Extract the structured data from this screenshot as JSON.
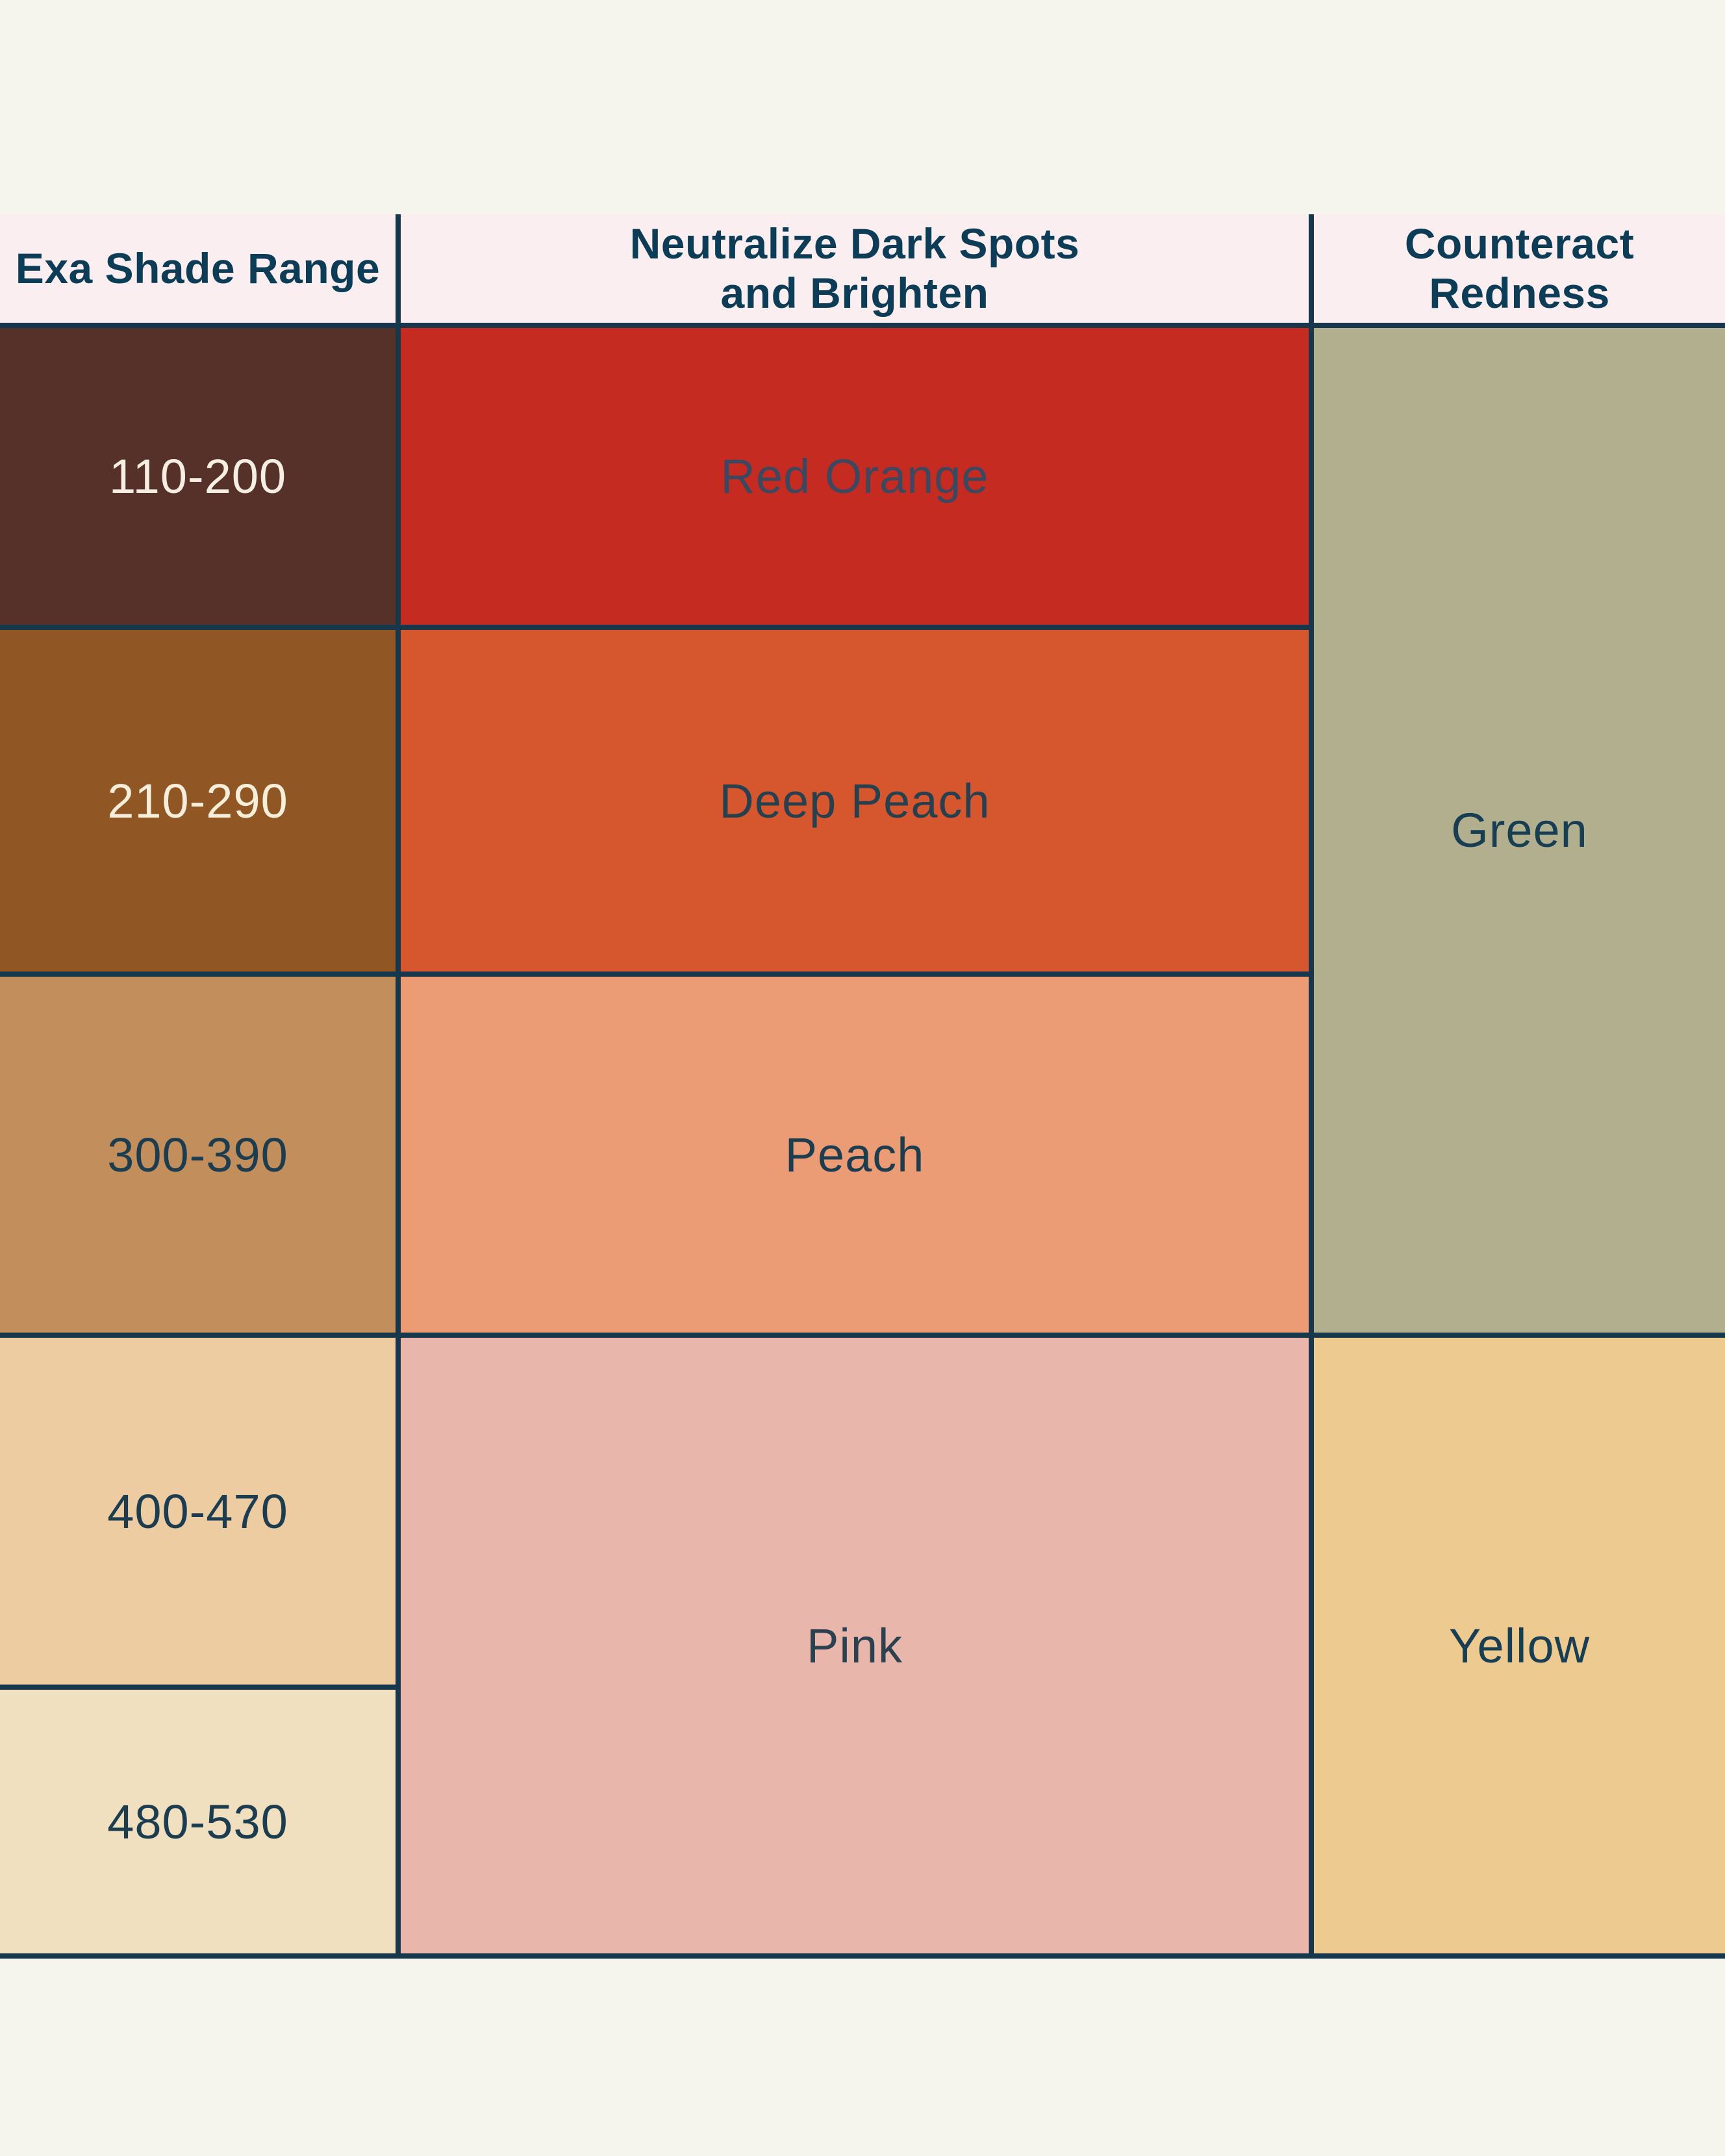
{
  "page": {
    "background_color": "#f5f4ed",
    "border_color": "#17374c"
  },
  "table": {
    "header": {
      "bg": "#fbeef0",
      "text_color": "#0d3d56",
      "col1_label": "Exa Shade Range",
      "col2_label": "Neutralize Dark Spots\nand Brighten",
      "col3_label": "Counteract\nRedness"
    },
    "shade_rows": [
      {
        "range": "110-200",
        "bg": "#563129",
        "text_color": "#f7eee3"
      },
      {
        "range": "210-290",
        "bg": "#905724",
        "text_color": "#f8eed9"
      },
      {
        "range": "300-390",
        "bg": "#c28e5b",
        "text_color": "#1c3c50"
      },
      {
        "range": "400-470",
        "bg": "#edcca2",
        "text_color": "#1c3c50"
      },
      {
        "range": "480-530",
        "bg": "#f0e0c0",
        "text_color": "#1c3c50"
      }
    ],
    "neutralize_cells": [
      {
        "label": "Red Orange",
        "bg": "#c52b20",
        "text_color": "#3c4760",
        "spans_shade_rows": [
          "110-200"
        ]
      },
      {
        "label": "Deep Peach",
        "bg": "#d6572e",
        "text_color": "#26404f",
        "spans_shade_rows": [
          "210-290"
        ]
      },
      {
        "label": "Peach",
        "bg": "#eb9c75",
        "text_color": "#1c3c50",
        "spans_shade_rows": [
          "300-390"
        ]
      },
      {
        "label": "Pink",
        "bg": "#e8b6aa",
        "text_color": "#2b4150",
        "spans_shade_rows": [
          "400-470",
          "480-530"
        ]
      }
    ],
    "redness_cells": [
      {
        "label": "Green",
        "bg": "#b2af8e",
        "text_color": "#173e52",
        "spans_shade_rows": [
          "110-200",
          "210-290",
          "300-390"
        ]
      },
      {
        "label": "Yellow",
        "bg": "#edca90",
        "text_color": "#173e52",
        "spans_shade_rows": [
          "400-470",
          "480-530"
        ]
      }
    ]
  },
  "chart_data": {
    "type": "table",
    "title": "Exa shade range color-correcting chart",
    "columns": [
      "Exa Shade Range",
      "Neutralize Dark Spots and Brighten",
      "Counteract Redness"
    ],
    "rows": [
      [
        "110-200",
        "Red Orange",
        "Green"
      ],
      [
        "210-290",
        "Deep Peach",
        "Green"
      ],
      [
        "300-390",
        "Peach",
        "Green"
      ],
      [
        "400-470",
        "Pink",
        "Yellow"
      ],
      [
        "480-530",
        "Pink",
        "Yellow"
      ]
    ],
    "merged_cells": [
      {
        "column": "Neutralize Dark Spots and Brighten",
        "value": "Pink",
        "rows": [
          "400-470",
          "480-530"
        ]
      },
      {
        "column": "Counteract Redness",
        "value": "Green",
        "rows": [
          "110-200",
          "210-290",
          "300-390"
        ]
      },
      {
        "column": "Counteract Redness",
        "value": "Yellow",
        "rows": [
          "400-470",
          "480-530"
        ]
      }
    ],
    "swatch_colors": {
      "110-200": "#563129",
      "210-290": "#905724",
      "300-390": "#c28e5b",
      "400-470": "#edcca2",
      "480-530": "#f0e0c0",
      "Red Orange": "#c52b20",
      "Deep Peach": "#d6572e",
      "Peach": "#eb9c75",
      "Pink": "#e8b6aa",
      "Green": "#b2af8e",
      "Yellow": "#edca90"
    },
    "layout_hints": {
      "grid": "on",
      "header_bg": "#fbeef0",
      "grid_line_color": "#17374c"
    }
  }
}
